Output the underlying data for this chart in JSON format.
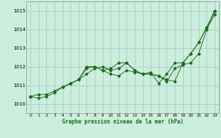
{
  "xlabel": "Graphe pression niveau de la mer (hPa)",
  "background_color": "#cceedd",
  "grid_color": "#aacccc",
  "line_color": "#1a6b1a",
  "xlim": [
    -0.5,
    23.5
  ],
  "ylim": [
    1009.5,
    1015.5
  ],
  "yticks": [
    1010,
    1011,
    1012,
    1013,
    1014,
    1015
  ],
  "xticks": [
    0,
    1,
    2,
    3,
    4,
    5,
    6,
    7,
    8,
    9,
    10,
    11,
    12,
    13,
    14,
    15,
    16,
    17,
    18,
    19,
    20,
    21,
    22,
    23
  ],
  "series": [
    [
      1010.4,
      1010.5,
      1010.5,
      1010.7,
      1010.9,
      1011.1,
      1011.3,
      1011.6,
      1011.9,
      1012.0,
      1011.8,
      1011.9,
      1012.2,
      1011.8,
      1011.6,
      1011.6,
      1011.5,
      1011.2,
      1011.9,
      1012.1,
      1012.2,
      1012.7,
      1014.0,
      1014.8
    ],
    [
      1010.4,
      1010.3,
      1010.4,
      1010.6,
      1010.9,
      1011.1,
      1011.3,
      1012.0,
      1012.0,
      1011.8,
      1011.9,
      1012.2,
      1012.2,
      1011.8,
      1011.6,
      1011.6,
      1011.5,
      1011.3,
      1011.2,
      1012.2,
      1012.7,
      1013.3,
      1014.1,
      1015.0
    ],
    [
      1010.4,
      null,
      null,
      null,
      1010.9,
      1011.1,
      1011.3,
      1011.9,
      1012.0,
      1011.8,
      1011.6,
      1011.5,
      1011.8,
      1011.7,
      1011.6,
      1011.7,
      1011.1,
      1011.6,
      1012.2,
      1012.2,
      1012.7,
      1013.3,
      1014.1,
      1015.0
    ],
    [
      1010.4,
      null,
      null,
      null,
      null,
      null,
      null,
      null,
      null,
      null,
      null,
      null,
      null,
      null,
      null,
      null,
      null,
      null,
      null,
      null,
      null,
      null,
      1014.1,
      1015.0
    ]
  ]
}
